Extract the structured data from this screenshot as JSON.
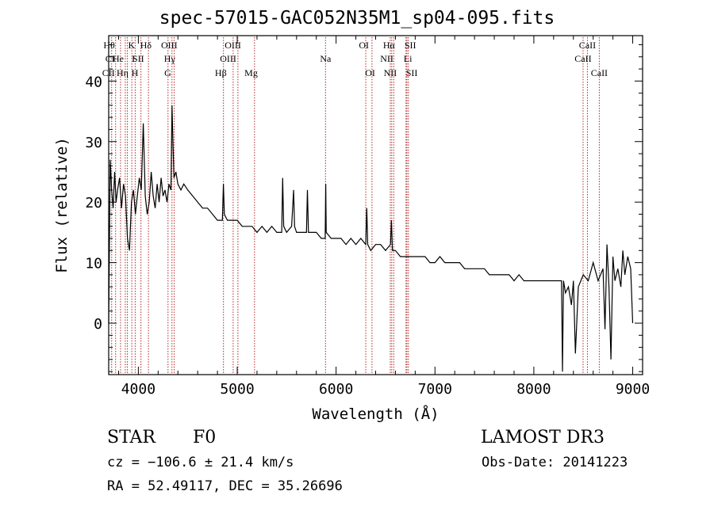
{
  "chart_data": {
    "type": "line",
    "title": "spec-57015-GAC052N35M1_sp04-095.fits",
    "xlabel": "Wavelength (Å)",
    "ylabel": "Flux (relative)",
    "xlim": [
      3700,
      9100
    ],
    "ylim": [
      -8.5,
      47.5
    ],
    "xticks": [
      4000,
      5000,
      6000,
      7000,
      8000,
      9000
    ],
    "yticks": [
      0,
      10,
      20,
      30,
      40
    ],
    "tick_labels_x": [
      "4000",
      "5000",
      "6000",
      "7000",
      "8000",
      "9000"
    ],
    "tick_labels_y": [
      "0",
      "10",
      "20",
      "30",
      "40"
    ],
    "series": [
      {
        "name": "spectrum",
        "x": [
          3700,
          3715,
          3730,
          3745,
          3760,
          3775,
          3790,
          3810,
          3830,
          3850,
          3870,
          3890,
          3910,
          3930,
          3950,
          3970,
          3990,
          4010,
          4030,
          4050,
          4070,
          4090,
          4110,
          4130,
          4150,
          4170,
          4190,
          4210,
          4230,
          4250,
          4270,
          4290,
          4310,
          4330,
          4340,
          4350,
          4360,
          4380,
          4400,
          4430,
          4460,
          4500,
          4550,
          4600,
          4650,
          4700,
          4750,
          4800,
          4850,
          4860,
          4870,
          4900,
          4950,
          5000,
          5050,
          5100,
          5150,
          5200,
          5250,
          5300,
          5350,
          5400,
          5450,
          5460,
          5470,
          5500,
          5550,
          5570,
          5580,
          5600,
          5650,
          5700,
          5710,
          5720,
          5750,
          5800,
          5850,
          5890,
          5895,
          5900,
          5950,
          6000,
          6050,
          6100,
          6150,
          6200,
          6250,
          6300,
          6310,
          6320,
          6350,
          6400,
          6450,
          6500,
          6550,
          6560,
          6570,
          6600,
          6650,
          6700,
          6750,
          6800,
          6850,
          6900,
          6950,
          7000,
          7050,
          7100,
          7150,
          7200,
          7250,
          7300,
          7350,
          7400,
          7450,
          7500,
          7550,
          7600,
          7650,
          7700,
          7750,
          7800,
          7850,
          7900,
          7950,
          8000,
          8050,
          8100,
          8150,
          8200,
          8250,
          8280,
          8290,
          8300,
          8320,
          8350,
          8380,
          8400,
          8420,
          8450,
          8500,
          8550,
          8600,
          8650,
          8700,
          8720,
          8740,
          8760,
          8780,
          8800,
          8820,
          8850,
          8880,
          8900,
          8920,
          8950,
          8980,
          9000
        ],
        "y": [
          0,
          27,
          22,
          19,
          25,
          20,
          22,
          24,
          19,
          23,
          21,
          14,
          12,
          20,
          22,
          18,
          21,
          24,
          22,
          33,
          21,
          18,
          20,
          25,
          21,
          19,
          23,
          20,
          24,
          21,
          22,
          20,
          23,
          22,
          36,
          30,
          24,
          25,
          23,
          22,
          23,
          22,
          21,
          20,
          19,
          19,
          18,
          17,
          17,
          23,
          18,
          17,
          17,
          17,
          16,
          16,
          16,
          15,
          16,
          15,
          16,
          15,
          15,
          24,
          16,
          15,
          16,
          22,
          16,
          15,
          15,
          15,
          22,
          15,
          15,
          15,
          14,
          14,
          23,
          15,
          14,
          14,
          14,
          13,
          14,
          13,
          14,
          13,
          19,
          13,
          12,
          13,
          13,
          12,
          13,
          17,
          12,
          12,
          11,
          11,
          11,
          11,
          11,
          11,
          10,
          10,
          11,
          10,
          10,
          10,
          10,
          9,
          9,
          9,
          9,
          9,
          8,
          8,
          8,
          8,
          8,
          7,
          8,
          7,
          7,
          7,
          7,
          7,
          7,
          7,
          7,
          7,
          -8,
          7,
          5,
          6,
          3,
          7,
          -5,
          6,
          8,
          7,
          10,
          7,
          9,
          -1,
          13,
          6,
          -6,
          11,
          7,
          9,
          6,
          12,
          8,
          11,
          9,
          0
        ]
      }
    ],
    "lines": [
      {
        "x": 3730,
        "labels": [
          {
            "text": "Hθ",
            "row": 0,
            "pos": "left"
          },
          {
            "text": "CI",
            "row": 1,
            "pos": "left"
          },
          {
            "text": "CII",
            "row": 2,
            "pos": "left"
          }
        ]
      },
      {
        "x": 3770,
        "labels": []
      },
      {
        "x": 3820,
        "labels": [
          {
            "text": "He",
            "row": 1,
            "pos": "left"
          }
        ]
      },
      {
        "x": 3868,
        "labels": [
          {
            "text": "Hη",
            "row": 2,
            "pos": "left"
          }
        ]
      },
      {
        "x": 3889,
        "labels": []
      },
      {
        "x": 3934,
        "labels": [
          {
            "text": "K",
            "row": 0,
            "pos": "left"
          },
          {
            "text": "I",
            "row": 1,
            "pos": "left"
          }
        ]
      },
      {
        "x": 3968,
        "labels": [
          {
            "text": "H",
            "row": 2,
            "pos": "left"
          }
        ]
      },
      {
        "x": 4026,
        "labels": [
          {
            "text": "SII",
            "row": 1,
            "pos": "left"
          }
        ]
      },
      {
        "x": 4102,
        "labels": [
          {
            "text": "Hδ",
            "row": 0,
            "pos": "left"
          }
        ]
      },
      {
        "x": 4300,
        "labels": [
          {
            "text": "G",
            "row": 2,
            "pos": "left"
          }
        ]
      },
      {
        "x": 4340,
        "labels": [
          {
            "text": "Hγ",
            "row": 1,
            "pos": "left"
          }
        ]
      },
      {
        "x": 4363,
        "labels": [
          {
            "text": "OIII",
            "row": 0,
            "pos": "left"
          }
        ]
      },
      {
        "x": 4861,
        "labels": [
          {
            "text": "Hβ",
            "row": 2,
            "pos": "left"
          }
        ]
      },
      {
        "x": 4959,
        "labels": [
          {
            "text": "OIII",
            "row": 1,
            "pos": "left"
          }
        ]
      },
      {
        "x": 5007,
        "labels": [
          {
            "text": "OIII",
            "row": 0,
            "pos": "left"
          }
        ]
      },
      {
        "x": 5175,
        "labels": [
          {
            "text": "Mg",
            "row": 2,
            "pos": "left"
          }
        ]
      },
      {
        "x": 5893,
        "labels": [
          {
            "text": "Na",
            "row": 1,
            "pos": "center"
          }
        ]
      },
      {
        "x": 6300,
        "labels": [
          {
            "text": "OI",
            "row": 0,
            "pos": "left"
          }
        ]
      },
      {
        "x": 6363,
        "labels": [
          {
            "text": "OI",
            "row": 2,
            "pos": "left"
          }
        ]
      },
      {
        "x": 6548,
        "labels": [
          {
            "text": "NII",
            "row": 1,
            "pos": "left"
          }
        ]
      },
      {
        "x": 6563,
        "labels": [
          {
            "text": "Hα",
            "row": 0,
            "pos": "left"
          }
        ]
      },
      {
        "x": 6583,
        "labels": [
          {
            "text": "NII",
            "row": 2,
            "pos": "left"
          }
        ]
      },
      {
        "x": 6707,
        "labels": [
          {
            "text": "Li",
            "row": 1,
            "pos": "right"
          }
        ]
      },
      {
        "x": 6716,
        "labels": [
          {
            "text": "SII",
            "row": 0,
            "pos": "right"
          }
        ]
      },
      {
        "x": 6731,
        "labels": [
          {
            "text": "SII",
            "row": 2,
            "pos": "right"
          }
        ]
      },
      {
        "x": 8498,
        "labels": [
          {
            "text": "CaII",
            "row": 1,
            "pos": "center"
          }
        ]
      },
      {
        "x": 8542,
        "labels": [
          {
            "text": "CaII",
            "row": 0,
            "pos": "center"
          }
        ]
      },
      {
        "x": 8662,
        "labels": [
          {
            "text": "CaII",
            "row": 2,
            "pos": "center"
          }
        ]
      }
    ],
    "colors": {
      "spectrum": "#000000",
      "lines": "#b22222",
      "axes": "#000000"
    }
  },
  "info": {
    "object_class": "STAR",
    "subclass": "F0",
    "survey": "LAMOST DR3",
    "redshift": "cz = −106.6 ± 21.4 km/s",
    "obs_date": "Obs-Date: 20141223",
    "coords": "RA =  52.49117, DEC =  35.26696"
  }
}
